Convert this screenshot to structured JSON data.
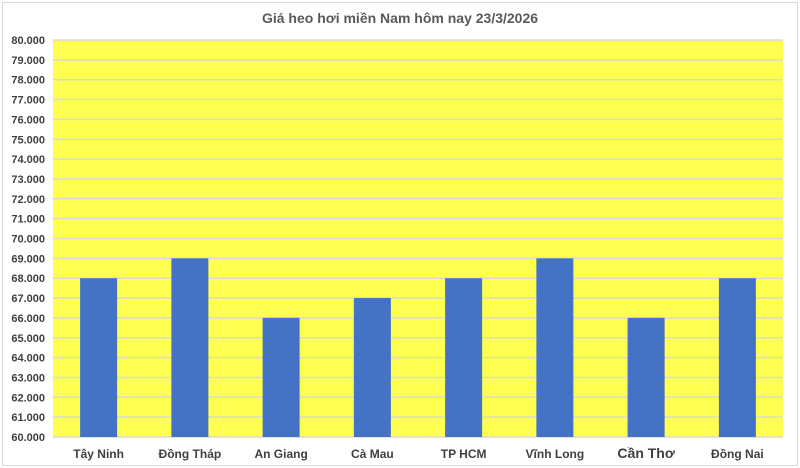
{
  "chart_data": {
    "type": "bar",
    "title": "Giá heo hơi miền Nam hôm nay 23/3/2026",
    "categories": [
      "Tây Ninh",
      "Đồng Tháp",
      "An Giang",
      "Cà Mau",
      "TP HCM",
      "Vĩnh Long",
      "Cần Thơ",
      "Đồng Nai"
    ],
    "values": [
      68000,
      69000,
      66000,
      67000,
      68000,
      69000,
      66000,
      68000
    ],
    "ylim": [
      60000,
      80000
    ],
    "ytick_step": 1000,
    "ytick_labels": [
      "60.000",
      "61.000",
      "62.000",
      "63.000",
      "64.000",
      "65.000",
      "66.000",
      "67.000",
      "68.000",
      "69.000",
      "70.000",
      "71.000",
      "72.000",
      "73.000",
      "74.000",
      "75.000",
      "76.000",
      "77.000",
      "78.000",
      "79.000",
      "80.000"
    ],
    "grid": true,
    "legend": "none",
    "colors": {
      "bar": "#4472C4",
      "plot_bg": "#FFFF4F",
      "grid": "#D9D9D9",
      "text": "#404040"
    }
  }
}
